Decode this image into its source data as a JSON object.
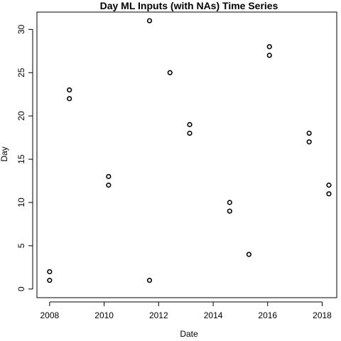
{
  "chart_data": {
    "type": "scatter",
    "title": "Day ML Inputs (with NAs) Time Series",
    "xlabel": "Date",
    "ylabel": "Day",
    "xlim": [
      "2007-07-15",
      "2018-07-15"
    ],
    "ylim": [
      -1,
      32
    ],
    "x_ticks": [
      "2008",
      "2010",
      "2012",
      "2014",
      "2016",
      "2018"
    ],
    "y_ticks": [
      0,
      5,
      10,
      15,
      20,
      25,
      30
    ],
    "grid": false,
    "point_style": "open-circle",
    "point_color": "#000000",
    "points": [
      {
        "x": "2008-01-01",
        "y": 2
      },
      {
        "x": "2008-01-01",
        "y": 1
      },
      {
        "x": "2008-09-22",
        "y": 23
      },
      {
        "x": "2008-09-22",
        "y": 22
      },
      {
        "x": "2010-03-01",
        "y": 13
      },
      {
        "x": "2010-03-01",
        "y": 12
      },
      {
        "x": "2011-09-01",
        "y": 31
      },
      {
        "x": "2011-09-01",
        "y": 1
      },
      {
        "x": "2012-06-01",
        "y": 25
      },
      {
        "x": "2013-02-20",
        "y": 19
      },
      {
        "x": "2013-02-20",
        "y": 18
      },
      {
        "x": "2014-08-10",
        "y": 10
      },
      {
        "x": "2014-08-10",
        "y": 9
      },
      {
        "x": "2015-04-25",
        "y": 4
      },
      {
        "x": "2016-01-25",
        "y": 28
      },
      {
        "x": "2016-01-25",
        "y": 27
      },
      {
        "x": "2017-07-10",
        "y": 18
      },
      {
        "x": "2017-07-10",
        "y": 17
      },
      {
        "x": "2018-04-01",
        "y": 12
      },
      {
        "x": "2018-04-01",
        "y": 11
      }
    ]
  }
}
